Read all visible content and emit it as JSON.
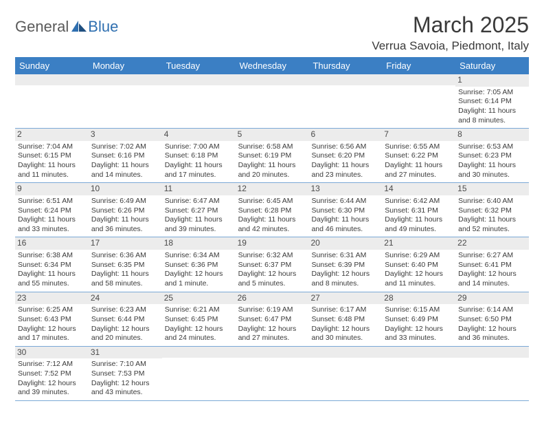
{
  "brand": {
    "part1": "General",
    "part2": "Blue"
  },
  "title": {
    "month": "March 2025",
    "location": "Verrua Savoia, Piedmont, Italy"
  },
  "colors": {
    "header_bg": "#3b7fc4",
    "header_fg": "#ffffff",
    "daynum_bg": "#ececec",
    "rule": "#7aa8d6",
    "text": "#3a3a3a",
    "brand_grey": "#5a5a5a",
    "brand_blue": "#2f6fb0"
  },
  "weekdays": [
    "Sunday",
    "Monday",
    "Tuesday",
    "Wednesday",
    "Thursday",
    "Friday",
    "Saturday"
  ],
  "weeks": [
    [
      {
        "blank": true
      },
      {
        "blank": true
      },
      {
        "blank": true
      },
      {
        "blank": true
      },
      {
        "blank": true
      },
      {
        "blank": true
      },
      {
        "day": "1",
        "sunrise": "Sunrise: 7:05 AM",
        "sunset": "Sunset: 6:14 PM",
        "daylight": "Daylight: 11 hours and 8 minutes."
      }
    ],
    [
      {
        "day": "2",
        "sunrise": "Sunrise: 7:04 AM",
        "sunset": "Sunset: 6:15 PM",
        "daylight": "Daylight: 11 hours and 11 minutes."
      },
      {
        "day": "3",
        "sunrise": "Sunrise: 7:02 AM",
        "sunset": "Sunset: 6:16 PM",
        "daylight": "Daylight: 11 hours and 14 minutes."
      },
      {
        "day": "4",
        "sunrise": "Sunrise: 7:00 AM",
        "sunset": "Sunset: 6:18 PM",
        "daylight": "Daylight: 11 hours and 17 minutes."
      },
      {
        "day": "5",
        "sunrise": "Sunrise: 6:58 AM",
        "sunset": "Sunset: 6:19 PM",
        "daylight": "Daylight: 11 hours and 20 minutes."
      },
      {
        "day": "6",
        "sunrise": "Sunrise: 6:56 AM",
        "sunset": "Sunset: 6:20 PM",
        "daylight": "Daylight: 11 hours and 23 minutes."
      },
      {
        "day": "7",
        "sunrise": "Sunrise: 6:55 AM",
        "sunset": "Sunset: 6:22 PM",
        "daylight": "Daylight: 11 hours and 27 minutes."
      },
      {
        "day": "8",
        "sunrise": "Sunrise: 6:53 AM",
        "sunset": "Sunset: 6:23 PM",
        "daylight": "Daylight: 11 hours and 30 minutes."
      }
    ],
    [
      {
        "day": "9",
        "sunrise": "Sunrise: 6:51 AM",
        "sunset": "Sunset: 6:24 PM",
        "daylight": "Daylight: 11 hours and 33 minutes."
      },
      {
        "day": "10",
        "sunrise": "Sunrise: 6:49 AM",
        "sunset": "Sunset: 6:26 PM",
        "daylight": "Daylight: 11 hours and 36 minutes."
      },
      {
        "day": "11",
        "sunrise": "Sunrise: 6:47 AM",
        "sunset": "Sunset: 6:27 PM",
        "daylight": "Daylight: 11 hours and 39 minutes."
      },
      {
        "day": "12",
        "sunrise": "Sunrise: 6:45 AM",
        "sunset": "Sunset: 6:28 PM",
        "daylight": "Daylight: 11 hours and 42 minutes."
      },
      {
        "day": "13",
        "sunrise": "Sunrise: 6:44 AM",
        "sunset": "Sunset: 6:30 PM",
        "daylight": "Daylight: 11 hours and 46 minutes."
      },
      {
        "day": "14",
        "sunrise": "Sunrise: 6:42 AM",
        "sunset": "Sunset: 6:31 PM",
        "daylight": "Daylight: 11 hours and 49 minutes."
      },
      {
        "day": "15",
        "sunrise": "Sunrise: 6:40 AM",
        "sunset": "Sunset: 6:32 PM",
        "daylight": "Daylight: 11 hours and 52 minutes."
      }
    ],
    [
      {
        "day": "16",
        "sunrise": "Sunrise: 6:38 AM",
        "sunset": "Sunset: 6:34 PM",
        "daylight": "Daylight: 11 hours and 55 minutes."
      },
      {
        "day": "17",
        "sunrise": "Sunrise: 6:36 AM",
        "sunset": "Sunset: 6:35 PM",
        "daylight": "Daylight: 11 hours and 58 minutes."
      },
      {
        "day": "18",
        "sunrise": "Sunrise: 6:34 AM",
        "sunset": "Sunset: 6:36 PM",
        "daylight": "Daylight: 12 hours and 1 minute."
      },
      {
        "day": "19",
        "sunrise": "Sunrise: 6:32 AM",
        "sunset": "Sunset: 6:37 PM",
        "daylight": "Daylight: 12 hours and 5 minutes."
      },
      {
        "day": "20",
        "sunrise": "Sunrise: 6:31 AM",
        "sunset": "Sunset: 6:39 PM",
        "daylight": "Daylight: 12 hours and 8 minutes."
      },
      {
        "day": "21",
        "sunrise": "Sunrise: 6:29 AM",
        "sunset": "Sunset: 6:40 PM",
        "daylight": "Daylight: 12 hours and 11 minutes."
      },
      {
        "day": "22",
        "sunrise": "Sunrise: 6:27 AM",
        "sunset": "Sunset: 6:41 PM",
        "daylight": "Daylight: 12 hours and 14 minutes."
      }
    ],
    [
      {
        "day": "23",
        "sunrise": "Sunrise: 6:25 AM",
        "sunset": "Sunset: 6:43 PM",
        "daylight": "Daylight: 12 hours and 17 minutes."
      },
      {
        "day": "24",
        "sunrise": "Sunrise: 6:23 AM",
        "sunset": "Sunset: 6:44 PM",
        "daylight": "Daylight: 12 hours and 20 minutes."
      },
      {
        "day": "25",
        "sunrise": "Sunrise: 6:21 AM",
        "sunset": "Sunset: 6:45 PM",
        "daylight": "Daylight: 12 hours and 24 minutes."
      },
      {
        "day": "26",
        "sunrise": "Sunrise: 6:19 AM",
        "sunset": "Sunset: 6:47 PM",
        "daylight": "Daylight: 12 hours and 27 minutes."
      },
      {
        "day": "27",
        "sunrise": "Sunrise: 6:17 AM",
        "sunset": "Sunset: 6:48 PM",
        "daylight": "Daylight: 12 hours and 30 minutes."
      },
      {
        "day": "28",
        "sunrise": "Sunrise: 6:15 AM",
        "sunset": "Sunset: 6:49 PM",
        "daylight": "Daylight: 12 hours and 33 minutes."
      },
      {
        "day": "29",
        "sunrise": "Sunrise: 6:14 AM",
        "sunset": "Sunset: 6:50 PM",
        "daylight": "Daylight: 12 hours and 36 minutes."
      }
    ],
    [
      {
        "day": "30",
        "sunrise": "Sunrise: 7:12 AM",
        "sunset": "Sunset: 7:52 PM",
        "daylight": "Daylight: 12 hours and 39 minutes."
      },
      {
        "day": "31",
        "sunrise": "Sunrise: 7:10 AM",
        "sunset": "Sunset: 7:53 PM",
        "daylight": "Daylight: 12 hours and 43 minutes."
      },
      {
        "blank": true
      },
      {
        "blank": true
      },
      {
        "blank": true
      },
      {
        "blank": true
      },
      {
        "blank": true
      }
    ]
  ]
}
